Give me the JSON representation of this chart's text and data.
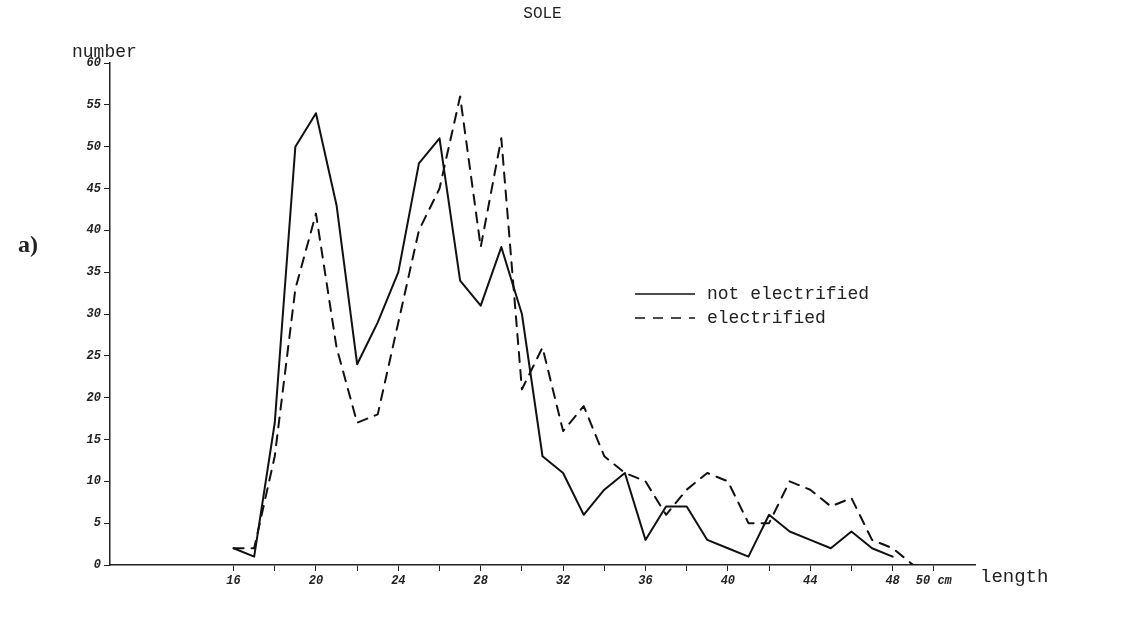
{
  "chart_data": {
    "type": "line",
    "title": "SOLE",
    "xlabel": "length",
    "ylabel": "number",
    "annotations": [
      "a)"
    ],
    "x": [
      16,
      17,
      18,
      19,
      20,
      21,
      22,
      23,
      24,
      25,
      26,
      27,
      28,
      29,
      30,
      31,
      32,
      33,
      34,
      35,
      36,
      37,
      38,
      39,
      40,
      41,
      42,
      43,
      44,
      45,
      46,
      47,
      48
    ],
    "series": [
      {
        "name": "not electrified",
        "color": "#111111",
        "line_style": "solid",
        "values": [
          2,
          1,
          17,
          50,
          54,
          43,
          24,
          29,
          35,
          48,
          51,
          34,
          31,
          38,
          30,
          13,
          11,
          6,
          9,
          11,
          3,
          7,
          7,
          3,
          2,
          1,
          6,
          4,
          3,
          2,
          4,
          2,
          1
        ]
      },
      {
        "name": "electrified",
        "color": "#111111",
        "line_style": "dashed",
        "x": [
          16,
          17,
          18,
          19,
          20,
          21,
          22,
          23,
          24,
          25,
          26,
          27,
          28,
          29,
          30,
          31,
          32,
          33,
          34,
          35,
          36,
          37,
          38,
          39,
          40,
          41,
          42,
          43,
          44,
          45,
          46,
          47,
          48,
          49
        ],
        "values": [
          2,
          2,
          13,
          33,
          42,
          26,
          17,
          18,
          29,
          40,
          45,
          56,
          38,
          51,
          21,
          26,
          16,
          19,
          13,
          11,
          10,
          6,
          9,
          11,
          10,
          5,
          5,
          10,
          9,
          7,
          8,
          3,
          2,
          0
        ]
      }
    ],
    "xlim": [
      10,
      52
    ],
    "xticks": [
      16,
      {
        "value": 18,
        "label": null
      },
      20,
      {
        "value": 22,
        "label": null
      },
      24,
      {
        "value": 26,
        "label": null
      },
      28,
      {
        "value": 30,
        "label": null
      },
      32,
      {
        "value": 34,
        "label": null
      },
      36,
      {
        "value": 38,
        "label": null
      },
      40,
      {
        "value": 42,
        "label": null
      },
      44,
      {
        "value": 46,
        "label": null
      },
      48,
      {
        "value": 50,
        "label": "50 cm"
      }
    ],
    "ylim": [
      0,
      60
    ],
    "yticks": [
      0,
      5,
      10,
      15,
      20,
      25,
      30,
      35,
      40,
      45,
      50,
      55,
      60
    ],
    "grid": false,
    "legend": "right",
    "marker": "none"
  }
}
